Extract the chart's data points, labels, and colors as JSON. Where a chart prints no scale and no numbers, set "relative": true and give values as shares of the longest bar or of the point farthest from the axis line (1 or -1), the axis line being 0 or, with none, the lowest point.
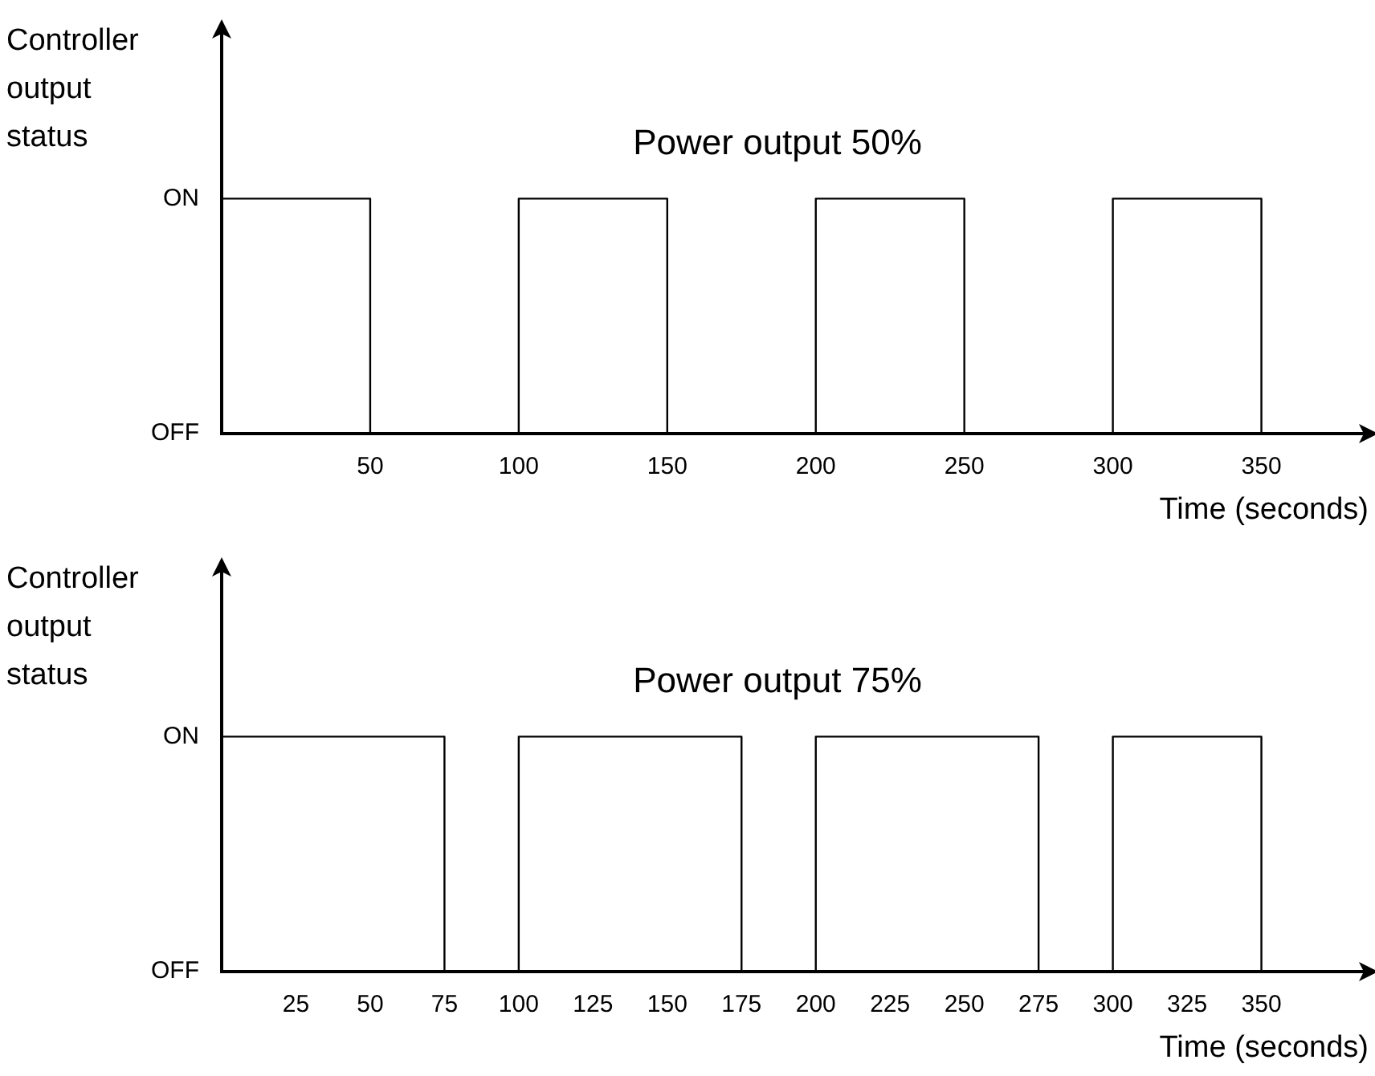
{
  "chart_data": [
    {
      "type": "step",
      "title": "Power output 50%",
      "ylabel": "Controller output status",
      "xlabel": "Time (seconds)",
      "x": [
        0,
        50,
        100,
        150,
        200,
        250,
        300,
        350
      ],
      "values": [
        1,
        0,
        1,
        0,
        1,
        0,
        1,
        0
      ],
      "color": "#000000",
      "xlim": [
        0,
        385
      ],
      "xticks": [
        50,
        100,
        150,
        200,
        250,
        300,
        350
      ],
      "relative": true,
      "annotations": [
        "OFF",
        "ON"
      ],
      "grid": false,
      "legend": false,
      "marker": "none"
    },
    {
      "type": "step",
      "title": "Power output 75%",
      "ylabel": "Controller output status",
      "xlabel": "Time (seconds)",
      "x": [
        0,
        75,
        100,
        175,
        200,
        275,
        300,
        350
      ],
      "values": [
        1,
        0,
        1,
        0,
        1,
        0,
        1,
        0
      ],
      "color": "#000000",
      "xlim": [
        0,
        385
      ],
      "xticks": [
        25,
        50,
        75,
        100,
        125,
        150,
        175,
        200,
        225,
        250,
        275,
        300,
        325,
        350
      ],
      "relative": true,
      "annotations": [
        "OFF",
        "ON"
      ],
      "grid": false,
      "legend": false,
      "marker": "none"
    }
  ]
}
